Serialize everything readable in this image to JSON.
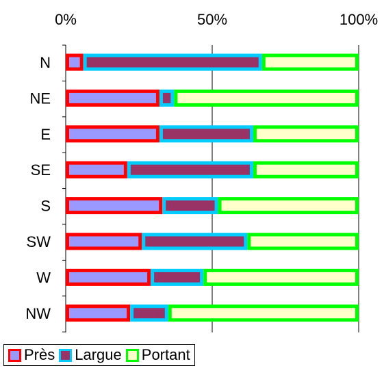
{
  "chart_data": {
    "type": "bar",
    "orientation": "horizontal",
    "stacked": "percent",
    "categories": [
      "N",
      "NE",
      "E",
      "SE",
      "S",
      "SW",
      "W",
      "NW"
    ],
    "series": [
      {
        "name": "Près",
        "values": [
          6,
          32,
          32,
          21,
          33,
          26,
          29,
          22
        ],
        "fill": "#9999ff",
        "stroke": "#ff0000"
      },
      {
        "name": "Largue",
        "values": [
          61,
          5,
          32,
          43,
          19,
          36,
          18,
          13
        ],
        "fill": "#993366",
        "stroke": "#00ccff"
      },
      {
        "name": "Portant",
        "values": [
          33,
          63,
          36,
          36,
          48,
          38,
          53,
          65
        ],
        "fill": "#ffffcc",
        "stroke": "#00ff00"
      }
    ],
    "xticks": [
      "0%",
      "50%",
      "100%"
    ],
    "xlim": [
      0,
      100
    ],
    "axis_position": "top",
    "grid": true,
    "legend": "bottom-left"
  }
}
